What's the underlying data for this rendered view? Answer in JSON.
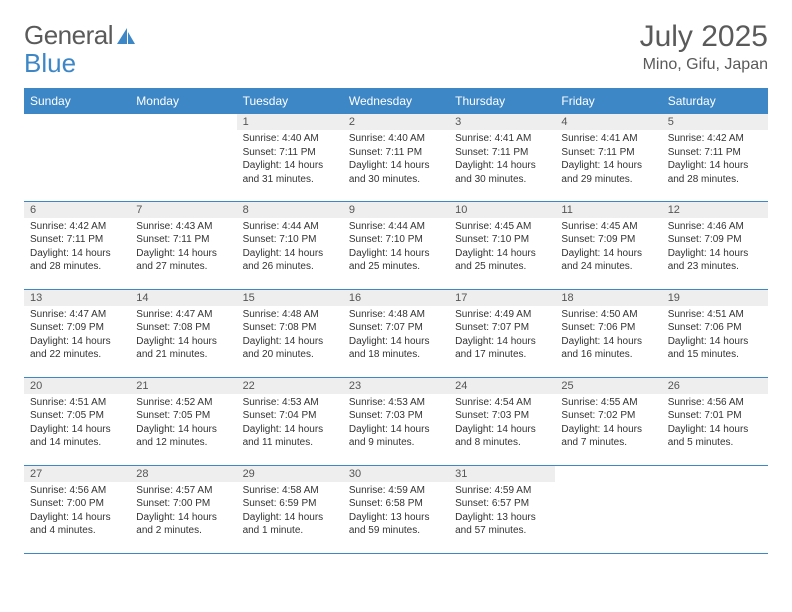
{
  "brand": {
    "part1": "General",
    "part2": "Blue"
  },
  "colors": {
    "accent": "#3d87c7",
    "header_bg": "#3d87c7",
    "header_text": "#ffffff",
    "daynum_bg": "#eeeeee",
    "body_bg": "#ffffff",
    "text": "#333333",
    "logo_gray": "#5a5a5a"
  },
  "title": "July 2025",
  "location": "Mino, Gifu, Japan",
  "weekdays": [
    "Sunday",
    "Monday",
    "Tuesday",
    "Wednesday",
    "Thursday",
    "Friday",
    "Saturday"
  ],
  "weeks": [
    [
      {
        "empty": true
      },
      {
        "empty": true
      },
      {
        "num": "1",
        "sunrise": "Sunrise: 4:40 AM",
        "sunset": "Sunset: 7:11 PM",
        "daylight": "Daylight: 14 hours and 31 minutes."
      },
      {
        "num": "2",
        "sunrise": "Sunrise: 4:40 AM",
        "sunset": "Sunset: 7:11 PM",
        "daylight": "Daylight: 14 hours and 30 minutes."
      },
      {
        "num": "3",
        "sunrise": "Sunrise: 4:41 AM",
        "sunset": "Sunset: 7:11 PM",
        "daylight": "Daylight: 14 hours and 30 minutes."
      },
      {
        "num": "4",
        "sunrise": "Sunrise: 4:41 AM",
        "sunset": "Sunset: 7:11 PM",
        "daylight": "Daylight: 14 hours and 29 minutes."
      },
      {
        "num": "5",
        "sunrise": "Sunrise: 4:42 AM",
        "sunset": "Sunset: 7:11 PM",
        "daylight": "Daylight: 14 hours and 28 minutes."
      }
    ],
    [
      {
        "num": "6",
        "sunrise": "Sunrise: 4:42 AM",
        "sunset": "Sunset: 7:11 PM",
        "daylight": "Daylight: 14 hours and 28 minutes."
      },
      {
        "num": "7",
        "sunrise": "Sunrise: 4:43 AM",
        "sunset": "Sunset: 7:11 PM",
        "daylight": "Daylight: 14 hours and 27 minutes."
      },
      {
        "num": "8",
        "sunrise": "Sunrise: 4:44 AM",
        "sunset": "Sunset: 7:10 PM",
        "daylight": "Daylight: 14 hours and 26 minutes."
      },
      {
        "num": "9",
        "sunrise": "Sunrise: 4:44 AM",
        "sunset": "Sunset: 7:10 PM",
        "daylight": "Daylight: 14 hours and 25 minutes."
      },
      {
        "num": "10",
        "sunrise": "Sunrise: 4:45 AM",
        "sunset": "Sunset: 7:10 PM",
        "daylight": "Daylight: 14 hours and 25 minutes."
      },
      {
        "num": "11",
        "sunrise": "Sunrise: 4:45 AM",
        "sunset": "Sunset: 7:09 PM",
        "daylight": "Daylight: 14 hours and 24 minutes."
      },
      {
        "num": "12",
        "sunrise": "Sunrise: 4:46 AM",
        "sunset": "Sunset: 7:09 PM",
        "daylight": "Daylight: 14 hours and 23 minutes."
      }
    ],
    [
      {
        "num": "13",
        "sunrise": "Sunrise: 4:47 AM",
        "sunset": "Sunset: 7:09 PM",
        "daylight": "Daylight: 14 hours and 22 minutes."
      },
      {
        "num": "14",
        "sunrise": "Sunrise: 4:47 AM",
        "sunset": "Sunset: 7:08 PM",
        "daylight": "Daylight: 14 hours and 21 minutes."
      },
      {
        "num": "15",
        "sunrise": "Sunrise: 4:48 AM",
        "sunset": "Sunset: 7:08 PM",
        "daylight": "Daylight: 14 hours and 20 minutes."
      },
      {
        "num": "16",
        "sunrise": "Sunrise: 4:48 AM",
        "sunset": "Sunset: 7:07 PM",
        "daylight": "Daylight: 14 hours and 18 minutes."
      },
      {
        "num": "17",
        "sunrise": "Sunrise: 4:49 AM",
        "sunset": "Sunset: 7:07 PM",
        "daylight": "Daylight: 14 hours and 17 minutes."
      },
      {
        "num": "18",
        "sunrise": "Sunrise: 4:50 AM",
        "sunset": "Sunset: 7:06 PM",
        "daylight": "Daylight: 14 hours and 16 minutes."
      },
      {
        "num": "19",
        "sunrise": "Sunrise: 4:51 AM",
        "sunset": "Sunset: 7:06 PM",
        "daylight": "Daylight: 14 hours and 15 minutes."
      }
    ],
    [
      {
        "num": "20",
        "sunrise": "Sunrise: 4:51 AM",
        "sunset": "Sunset: 7:05 PM",
        "daylight": "Daylight: 14 hours and 14 minutes."
      },
      {
        "num": "21",
        "sunrise": "Sunrise: 4:52 AM",
        "sunset": "Sunset: 7:05 PM",
        "daylight": "Daylight: 14 hours and 12 minutes."
      },
      {
        "num": "22",
        "sunrise": "Sunrise: 4:53 AM",
        "sunset": "Sunset: 7:04 PM",
        "daylight": "Daylight: 14 hours and 11 minutes."
      },
      {
        "num": "23",
        "sunrise": "Sunrise: 4:53 AM",
        "sunset": "Sunset: 7:03 PM",
        "daylight": "Daylight: 14 hours and 9 minutes."
      },
      {
        "num": "24",
        "sunrise": "Sunrise: 4:54 AM",
        "sunset": "Sunset: 7:03 PM",
        "daylight": "Daylight: 14 hours and 8 minutes."
      },
      {
        "num": "25",
        "sunrise": "Sunrise: 4:55 AM",
        "sunset": "Sunset: 7:02 PM",
        "daylight": "Daylight: 14 hours and 7 minutes."
      },
      {
        "num": "26",
        "sunrise": "Sunrise: 4:56 AM",
        "sunset": "Sunset: 7:01 PM",
        "daylight": "Daylight: 14 hours and 5 minutes."
      }
    ],
    [
      {
        "num": "27",
        "sunrise": "Sunrise: 4:56 AM",
        "sunset": "Sunset: 7:00 PM",
        "daylight": "Daylight: 14 hours and 4 minutes."
      },
      {
        "num": "28",
        "sunrise": "Sunrise: 4:57 AM",
        "sunset": "Sunset: 7:00 PM",
        "daylight": "Daylight: 14 hours and 2 minutes."
      },
      {
        "num": "29",
        "sunrise": "Sunrise: 4:58 AM",
        "sunset": "Sunset: 6:59 PM",
        "daylight": "Daylight: 14 hours and 1 minute."
      },
      {
        "num": "30",
        "sunrise": "Sunrise: 4:59 AM",
        "sunset": "Sunset: 6:58 PM",
        "daylight": "Daylight: 13 hours and 59 minutes."
      },
      {
        "num": "31",
        "sunrise": "Sunrise: 4:59 AM",
        "sunset": "Sunset: 6:57 PM",
        "daylight": "Daylight: 13 hours and 57 minutes."
      },
      {
        "empty": true
      },
      {
        "empty": true
      }
    ]
  ]
}
